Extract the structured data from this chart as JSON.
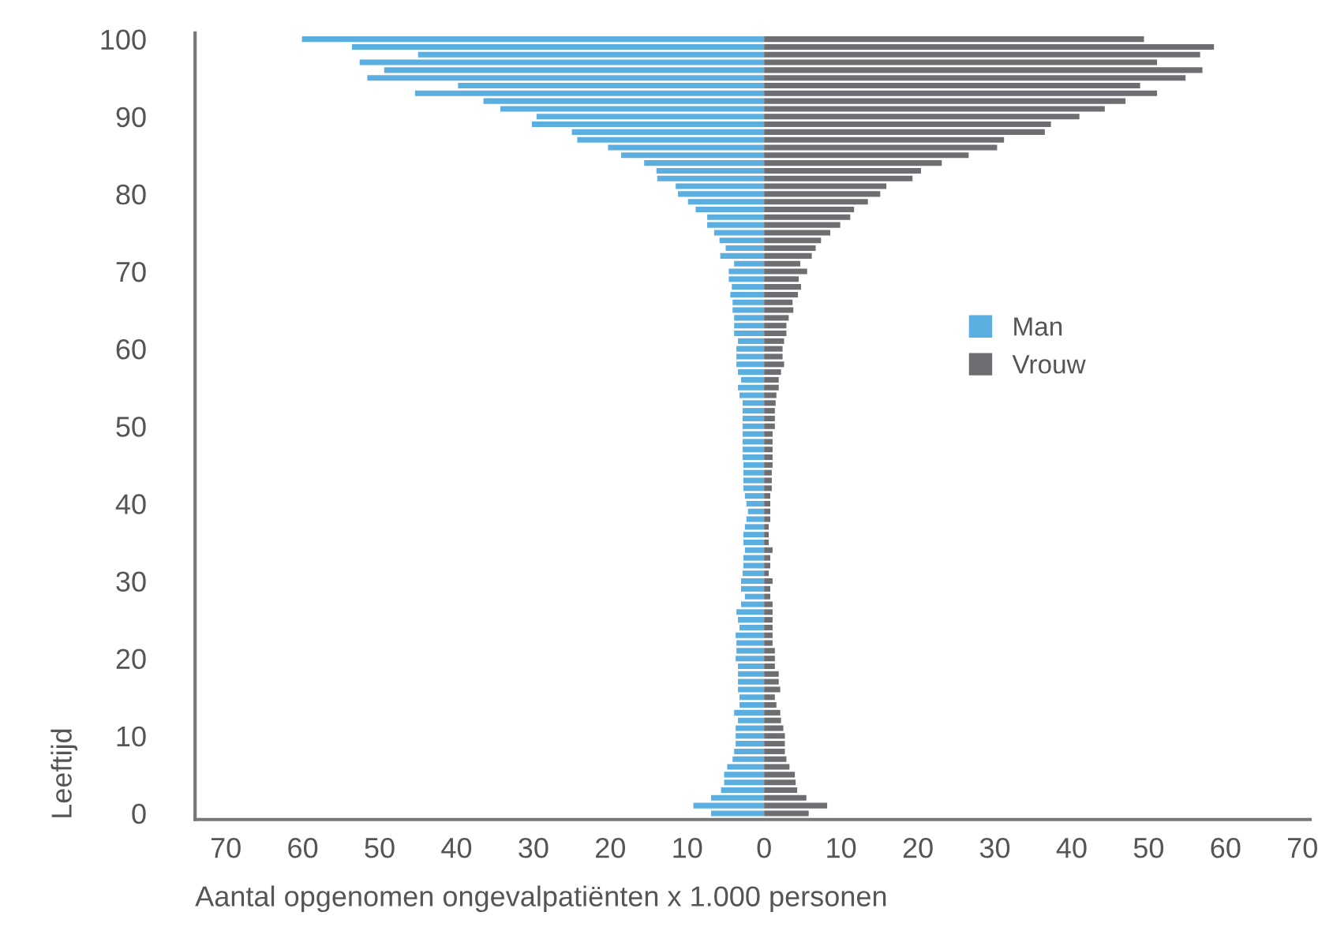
{
  "chart_data": {
    "type": "bar",
    "orientation": "horizontal",
    "xlabel": "Aantal opgenomen ongevalpatiënten x 1.000 personen",
    "ylabel": "Leeftijd",
    "categories": [
      "100",
      null,
      null,
      null,
      null,
      null,
      null,
      null,
      null,
      null,
      "90",
      null,
      null,
      null,
      null,
      null,
      null,
      null,
      null,
      null,
      "80",
      null,
      null,
      null,
      null,
      null,
      null,
      null,
      null,
      null,
      "70",
      null,
      null,
      null,
      null,
      null,
      null,
      null,
      null,
      null,
      "60",
      null,
      null,
      null,
      null,
      null,
      null,
      null,
      null,
      null,
      "50",
      null,
      null,
      null,
      null,
      null,
      null,
      null,
      null,
      null,
      "40",
      null,
      null,
      null,
      null,
      null,
      null,
      null,
      null,
      null,
      "30",
      null,
      null,
      null,
      null,
      null,
      null,
      null,
      null,
      null,
      "20",
      null,
      null,
      null,
      null,
      null,
      null,
      null,
      null,
      null,
      "10",
      null,
      null,
      null,
      null,
      null,
      null,
      null,
      null,
      null,
      "0"
    ],
    "series": [
      {
        "name": "Man",
        "color": "#5aafe0",
        "values": [
          -60.1,
          -53.6,
          -45.0,
          -52.6,
          -49.4,
          -51.6,
          -39.8,
          -45.4,
          -36.5,
          -34.3,
          -29.6,
          -30.2,
          -25.0,
          -24.3,
          -20.3,
          -18.6,
          -15.6,
          -14.0,
          -13.9,
          -11.5,
          -11.2,
          -9.9,
          -8.9,
          -7.4,
          -7.4,
          -6.5,
          -5.8,
          -5.0,
          -5.7,
          -3.9,
          -4.6,
          -4.6,
          -4.2,
          -4.4,
          -4.1,
          -4.1,
          -3.9,
          -3.9,
          -3.9,
          -3.4,
          -3.6,
          -3.6,
          -3.6,
          -3.4,
          -3.0,
          -3.4,
          -3.2,
          -2.8,
          -2.8,
          -2.8,
          -2.8,
          -2.8,
          -2.8,
          -2.8,
          -2.8,
          -2.7,
          -2.7,
          -2.7,
          -2.7,
          -2.5,
          -2.3,
          -2.1,
          -2.3,
          -2.5,
          -2.7,
          -2.7,
          -2.5,
          -2.7,
          -2.7,
          -2.8,
          -3.0,
          -3.0,
          -2.5,
          -3.0,
          -3.6,
          -3.4,
          -3.2,
          -3.7,
          -3.6,
          -3.6,
          -3.7,
          -3.4,
          -3.4,
          -3.4,
          -3.4,
          -3.2,
          -3.2,
          -3.9,
          -3.4,
          -3.7,
          -3.7,
          -3.7,
          -3.9,
          -4.1,
          -4.8,
          -5.2,
          -5.2,
          -5.6,
          -6.9,
          -9.2,
          -6.9
        ]
      },
      {
        "name": "Vrouw",
        "color": "#6d6e71",
        "values": [
          49.4,
          58.5,
          56.7,
          51.1,
          57.0,
          54.8,
          48.9,
          51.1,
          47.0,
          44.3,
          41.0,
          37.3,
          36.5,
          31.2,
          30.3,
          26.6,
          23.1,
          20.4,
          19.3,
          15.9,
          15.1,
          13.5,
          11.7,
          11.2,
          9.9,
          8.6,
          7.4,
          6.7,
          6.2,
          4.7,
          5.6,
          4.5,
          4.8,
          4.4,
          3.7,
          3.8,
          3.2,
          2.9,
          2.9,
          2.6,
          2.4,
          2.4,
          2.6,
          2.2,
          1.9,
          1.9,
          1.6,
          1.5,
          1.4,
          1.4,
          1.4,
          1.1,
          1.1,
          1.1,
          1.1,
          1.1,
          1.0,
          1.0,
          1.0,
          0.8,
          0.8,
          0.8,
          0.8,
          0.6,
          0.6,
          0.6,
          1.1,
          0.8,
          0.8,
          0.6,
          1.1,
          0.8,
          0.8,
          1.1,
          1.1,
          1.1,
          1.1,
          1.1,
          1.1,
          1.4,
          1.4,
          1.4,
          1.9,
          1.9,
          2.1,
          1.4,
          1.6,
          2.1,
          2.2,
          2.5,
          2.7,
          2.7,
          2.7,
          2.9,
          3.3,
          4.0,
          4.1,
          4.3,
          5.5,
          8.2,
          5.8
        ]
      }
    ],
    "xlim": [
      -74,
      71
    ],
    "xticks": [
      {
        "value": -70,
        "label": "70"
      },
      {
        "value": -60,
        "label": "60"
      },
      {
        "value": -50,
        "label": "50"
      },
      {
        "value": -40,
        "label": "40"
      },
      {
        "value": -30,
        "label": "30"
      },
      {
        "value": -20,
        "label": "20"
      },
      {
        "value": -10,
        "label": "10"
      },
      0,
      10,
      20,
      30,
      40,
      50,
      60,
      70
    ],
    "grid": false,
    "stacked": true,
    "legend": "right"
  }
}
